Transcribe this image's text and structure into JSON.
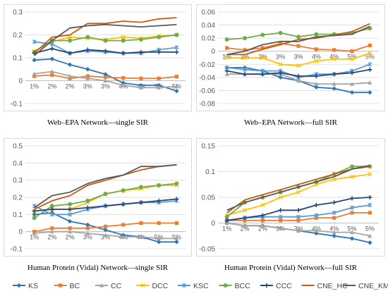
{
  "series_styles": [
    {
      "name": "KS",
      "color": "#2e75b6",
      "marker": "diamond"
    },
    {
      "name": "BC",
      "color": "#ed7d31",
      "marker": "square"
    },
    {
      "name": "CC",
      "color": "#a5a5a5",
      "marker": "triangle"
    },
    {
      "name": "DCC",
      "color": "#ffc000",
      "marker": "x"
    },
    {
      "name": "KSC",
      "color": "#5b9bd5",
      "marker": "star"
    },
    {
      "name": "BCC",
      "color": "#70ad47",
      "marker": "circle"
    },
    {
      "name": "CCC",
      "color": "#264478",
      "marker": "plus"
    },
    {
      "name": "CNE_HC",
      "color": "#c55a11",
      "marker": "none"
    },
    {
      "name": "CNE_KM",
      "color": "#595959",
      "marker": "none"
    }
  ],
  "captions": {
    "c1": "Web–EPA Network—single SIR",
    "c2": "Web–EPA Network—full SIR",
    "c3": "Human Protein (Vidal) Network—single SIR",
    "c4": "Human Protein (Vidal) Network—full SIR"
  },
  "chart_data": [
    {
      "type": "line",
      "title": "Web–EPA Network—single SIR",
      "categories": [
        "1%",
        "2%",
        "2%",
        "3%",
        "3%",
        "4%",
        "4%",
        "5%",
        "5%"
      ],
      "ylim": [
        -0.1,
        0.3
      ],
      "yticks": [
        -0.1,
        0,
        0.1,
        0.2,
        0.3
      ],
      "grid": true,
      "series": [
        {
          "name": "KS",
          "values": [
            0.09,
            0.095,
            0.07,
            0.05,
            0.028,
            -0.01,
            -0.02,
            -0.02,
            -0.045
          ]
        },
        {
          "name": "BC",
          "values": [
            0.02,
            0.025,
            0.01,
            0.02,
            0.015,
            0.012,
            0.01,
            0.01,
            0.018
          ]
        },
        {
          "name": "CC",
          "values": [
            0.03,
            0.04,
            0.02,
            0.01,
            0.0,
            -0.02,
            -0.03,
            -0.03,
            -0.025
          ]
        },
        {
          "name": "DCC",
          "values": [
            0.13,
            0.17,
            0.19,
            0.185,
            0.18,
            0.19,
            0.185,
            0.195,
            0.2
          ]
        },
        {
          "name": "KSC",
          "values": [
            0.17,
            0.16,
            0.12,
            0.13,
            0.125,
            0.12,
            0.12,
            0.135,
            0.145
          ]
        },
        {
          "name": "BCC",
          "values": [
            0.125,
            0.175,
            0.175,
            0.19,
            0.175,
            0.175,
            0.18,
            0.19,
            0.2
          ]
        },
        {
          "name": "CCC",
          "values": [
            0.12,
            0.14,
            0.12,
            0.135,
            0.13,
            0.12,
            0.125,
            0.125,
            0.125
          ]
        },
        {
          "name": "CNE_HC",
          "values": [
            0.12,
            0.19,
            0.2,
            0.25,
            0.25,
            0.26,
            0.255,
            0.27,
            0.275
          ]
        },
        {
          "name": "CNE_KM",
          "values": [
            0.11,
            0.175,
            0.23,
            0.24,
            0.245,
            0.24,
            0.235,
            0.24,
            0.245
          ]
        }
      ]
    },
    {
      "type": "line",
      "title": "Web–EPA Network—full SIR",
      "categories": [
        "1%",
        "2%",
        "2%",
        "3%",
        "3%",
        "4%",
        "4%",
        "5%",
        "5%"
      ],
      "ylim": [
        -0.08,
        0.06
      ],
      "yticks": [
        -0.08,
        -0.06,
        -0.04,
        -0.02,
        0,
        0.02,
        0.04,
        0.06
      ],
      "grid": true,
      "series": [
        {
          "name": "KS",
          "values": [
            -0.025,
            -0.025,
            -0.03,
            -0.04,
            -0.045,
            -0.055,
            -0.057,
            -0.063,
            -0.063
          ]
        },
        {
          "name": "BC",
          "values": [
            0.005,
            0.002,
            0.005,
            0.012,
            0.008,
            0.003,
            0.002,
            0.0,
            0.009
          ]
        },
        {
          "name": "CC",
          "values": [
            -0.035,
            -0.035,
            -0.035,
            -0.035,
            -0.045,
            -0.05,
            -0.05,
            -0.05,
            -0.048
          ]
        },
        {
          "name": "DCC",
          "values": [
            -0.01,
            -0.01,
            -0.01,
            -0.02,
            -0.022,
            -0.015,
            -0.012,
            -0.012,
            -0.003
          ]
        },
        {
          "name": "KSC",
          "values": [
            -0.025,
            -0.028,
            -0.03,
            -0.03,
            -0.04,
            -0.035,
            -0.035,
            -0.03,
            -0.02
          ]
        },
        {
          "name": "BCC",
          "values": [
            0.018,
            0.02,
            0.025,
            0.028,
            0.022,
            0.026,
            0.026,
            0.028,
            0.035
          ]
        },
        {
          "name": "CCC",
          "values": [
            -0.03,
            -0.035,
            -0.035,
            -0.033,
            -0.038,
            -0.038,
            -0.035,
            -0.033,
            -0.028
          ]
        },
        {
          "name": "CNE_HC",
          "values": [
            -0.005,
            -0.005,
            0.003,
            0.01,
            0.018,
            0.02,
            0.025,
            0.03,
            0.042
          ]
        },
        {
          "name": "CNE_KM",
          "values": [
            -0.005,
            0.0,
            0.01,
            0.015,
            0.015,
            0.022,
            0.024,
            0.026,
            0.038
          ]
        }
      ]
    },
    {
      "type": "line",
      "title": "Human Protein (Vidal) Network—single SIR",
      "categories": [
        "1%",
        "2%",
        "2%",
        "3%",
        "3%",
        "4%",
        "4%",
        "5%",
        "5%"
      ],
      "ylim": [
        -0.1,
        0.5
      ],
      "yticks": [
        -0.1,
        0,
        0.1,
        0.2,
        0.3,
        0.4,
        0.5
      ],
      "grid": true,
      "series": [
        {
          "name": "KS",
          "values": [
            0.1,
            0.11,
            0.06,
            0.04,
            0.01,
            -0.02,
            -0.03,
            -0.06,
            -0.06
          ]
        },
        {
          "name": "BC",
          "values": [
            0.0,
            0.02,
            0.02,
            0.02,
            0.03,
            0.04,
            0.05,
            0.05,
            0.05
          ]
        },
        {
          "name": "CC",
          "values": [
            -0.01,
            0.0,
            0.0,
            -0.01,
            -0.02,
            -0.03,
            -0.03,
            -0.04,
            -0.04
          ]
        },
        {
          "name": "DCC",
          "values": [
            0.12,
            0.13,
            0.13,
            0.17,
            0.22,
            0.24,
            0.25,
            0.27,
            0.27
          ]
        },
        {
          "name": "KSC",
          "values": [
            0.15,
            0.1,
            0.1,
            0.13,
            0.15,
            0.16,
            0.17,
            0.17,
            0.18
          ]
        },
        {
          "name": "BCC",
          "values": [
            0.08,
            0.15,
            0.16,
            0.18,
            0.22,
            0.24,
            0.26,
            0.27,
            0.28
          ]
        },
        {
          "name": "CCC",
          "values": [
            0.12,
            0.13,
            0.13,
            0.14,
            0.15,
            0.16,
            0.17,
            0.18,
            0.19
          ]
        },
        {
          "name": "CNE_HC",
          "values": [
            0.13,
            0.18,
            0.21,
            0.27,
            0.3,
            0.33,
            0.36,
            0.38,
            0.39
          ]
        },
        {
          "name": "CNE_KM",
          "values": [
            0.14,
            0.21,
            0.23,
            0.28,
            0.31,
            0.33,
            0.38,
            0.38,
            0.39
          ]
        }
      ]
    },
    {
      "type": "line",
      "title": "Human Protein (Vidal) Network—full SIR",
      "categories": [
        "1%",
        "2%",
        "2%",
        "3%",
        "3%",
        "4%",
        "4%",
        "5%",
        "5%"
      ],
      "ylim": [
        -0.05,
        0.15
      ],
      "yticks": [
        -0.05,
        0,
        0.05,
        0.1,
        0.15
      ],
      "grid": true,
      "series": [
        {
          "name": "KS",
          "values": [
            0.0,
            -0.005,
            -0.005,
            -0.01,
            -0.015,
            -0.02,
            -0.025,
            -0.03,
            -0.038
          ]
        },
        {
          "name": "BC",
          "values": [
            0.005,
            0.005,
            0.005,
            0.005,
            0.005,
            0.01,
            0.01,
            0.02,
            0.02
          ]
        },
        {
          "name": "CC",
          "values": [
            0.0,
            -0.005,
            -0.005,
            -0.01,
            -0.015,
            -0.015,
            -0.018,
            -0.018,
            -0.025
          ]
        },
        {
          "name": "DCC",
          "values": [
            0.015,
            0.025,
            0.035,
            0.05,
            0.06,
            0.075,
            0.085,
            0.09,
            0.095
          ]
        },
        {
          "name": "KSC",
          "values": [
            0.005,
            0.01,
            0.012,
            0.012,
            0.012,
            0.015,
            0.02,
            0.03,
            0.035
          ]
        },
        {
          "name": "BCC",
          "values": [
            0.012,
            0.04,
            0.05,
            0.06,
            0.07,
            0.08,
            0.095,
            0.11,
            0.11
          ]
        },
        {
          "name": "CCC",
          "values": [
            0.005,
            0.01,
            0.015,
            0.025,
            0.025,
            0.035,
            0.04,
            0.048,
            0.05
          ]
        },
        {
          "name": "CNE_HC",
          "values": [
            0.02,
            0.045,
            0.055,
            0.065,
            0.075,
            0.085,
            0.095,
            0.105,
            0.11
          ]
        },
        {
          "name": "CNE_KM",
          "values": [
            0.025,
            0.04,
            0.05,
            0.06,
            0.07,
            0.08,
            0.09,
            0.105,
            0.112
          ]
        }
      ]
    }
  ]
}
